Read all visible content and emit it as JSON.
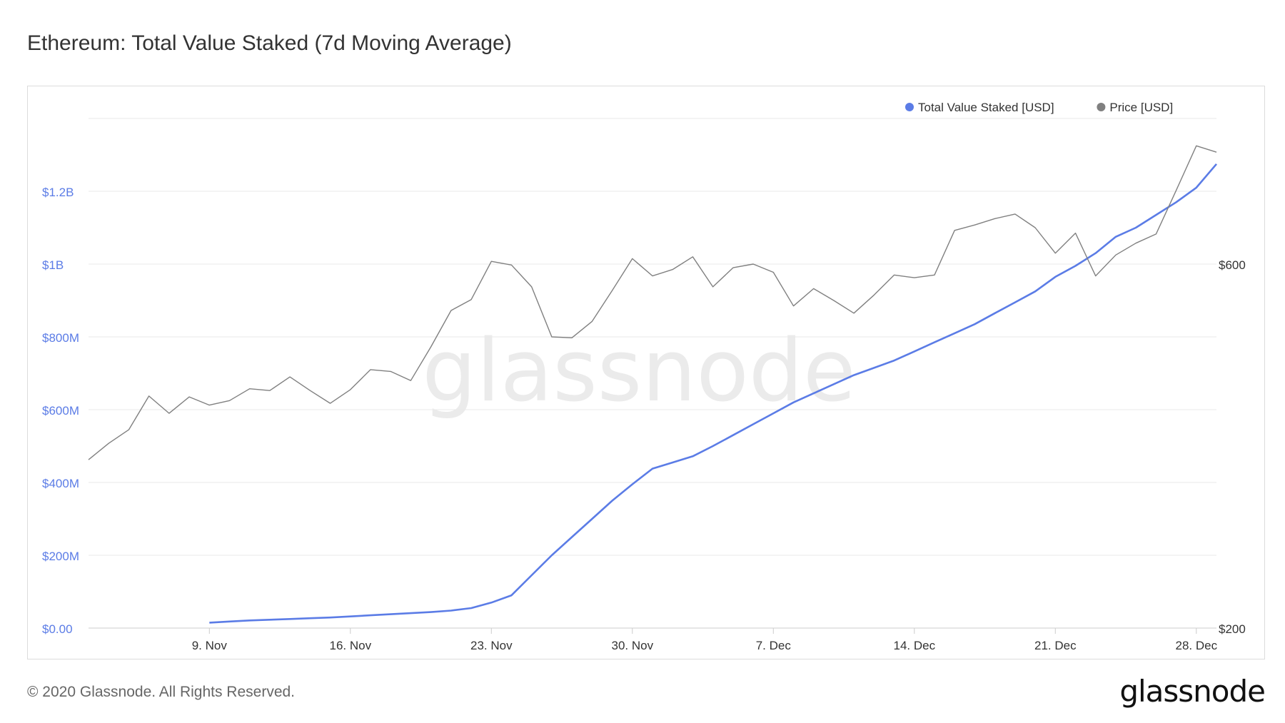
{
  "header": {
    "title": "Ethereum: Total Value Staked (7d Moving Average)"
  },
  "footer": {
    "copyright": "© 2020 Glassnode. All Rights Reserved.",
    "logo_text": "glassnode"
  },
  "watermark": "glassnode",
  "colors": {
    "staked": "#5b7ce6",
    "price": "#808080",
    "axis_left": "#5b7ce6",
    "axis_right": "#333333",
    "grid": "#e8e8e8"
  },
  "chart_data": {
    "type": "line",
    "title": "Ethereum: Total Value Staked (7d Moving Average)",
    "legend": [
      "Total Value Staked [USD]",
      "Price [USD]"
    ],
    "legend_position": "top-right",
    "grid": true,
    "x_range": [
      "2020-11-03",
      "2020-12-29"
    ],
    "x_ticks": [
      {
        "date": "2020-11-09",
        "label": "9. Nov"
      },
      {
        "date": "2020-11-16",
        "label": "16. Nov"
      },
      {
        "date": "2020-11-23",
        "label": "23. Nov"
      },
      {
        "date": "2020-11-30",
        "label": "30. Nov"
      },
      {
        "date": "2020-12-07",
        "label": "7. Dec"
      },
      {
        "date": "2020-12-14",
        "label": "14. Dec"
      },
      {
        "date": "2020-12-21",
        "label": "21. Dec"
      },
      {
        "date": "2020-12-28",
        "label": "28. Dec"
      }
    ],
    "y_left": {
      "ylim": [
        0,
        1400000000
      ],
      "ticks": [
        {
          "value": 0,
          "label": "$0.00"
        },
        {
          "value": 200000000,
          "label": "$200M"
        },
        {
          "value": 400000000,
          "label": "$400M"
        },
        {
          "value": 600000000,
          "label": "$600M"
        },
        {
          "value": 800000000,
          "label": "$800M"
        },
        {
          "value": 1000000000,
          "label": "$1B"
        },
        {
          "value": 1200000000,
          "label": "$1.2B"
        }
      ]
    },
    "y_right": {
      "ylim": [
        200,
        760
      ],
      "ticks": [
        {
          "value": 200,
          "label": "$200"
        },
        {
          "value": 600,
          "label": "$600"
        }
      ]
    },
    "series": [
      {
        "name": "Total Value Staked [USD]",
        "axis": "left",
        "points": [
          [
            "2020-11-09",
            15000000
          ],
          [
            "2020-11-10",
            18000000
          ],
          [
            "2020-11-11",
            21000000
          ],
          [
            "2020-11-12",
            23000000
          ],
          [
            "2020-11-13",
            25000000
          ],
          [
            "2020-11-14",
            27000000
          ],
          [
            "2020-11-15",
            29000000
          ],
          [
            "2020-11-16",
            32000000
          ],
          [
            "2020-11-17",
            35000000
          ],
          [
            "2020-11-18",
            38000000
          ],
          [
            "2020-11-19",
            41000000
          ],
          [
            "2020-11-20",
            44000000
          ],
          [
            "2020-11-21",
            48000000
          ],
          [
            "2020-11-22",
            55000000
          ],
          [
            "2020-11-23",
            70000000
          ],
          [
            "2020-11-24",
            90000000
          ],
          [
            "2020-11-25",
            145000000
          ],
          [
            "2020-11-26",
            200000000
          ],
          [
            "2020-11-27",
            250000000
          ],
          [
            "2020-11-28",
            300000000
          ],
          [
            "2020-11-29",
            350000000
          ],
          [
            "2020-11-30",
            395000000
          ],
          [
            "2020-12-01",
            438000000
          ],
          [
            "2020-12-02",
            455000000
          ],
          [
            "2020-12-03",
            472000000
          ],
          [
            "2020-12-04",
            500000000
          ],
          [
            "2020-12-05",
            530000000
          ],
          [
            "2020-12-06",
            560000000
          ],
          [
            "2020-12-07",
            590000000
          ],
          [
            "2020-12-08",
            620000000
          ],
          [
            "2020-12-09",
            645000000
          ],
          [
            "2020-12-10",
            670000000
          ],
          [
            "2020-12-11",
            695000000
          ],
          [
            "2020-12-12",
            715000000
          ],
          [
            "2020-12-13",
            735000000
          ],
          [
            "2020-12-14",
            760000000
          ],
          [
            "2020-12-15",
            785000000
          ],
          [
            "2020-12-16",
            810000000
          ],
          [
            "2020-12-17",
            835000000
          ],
          [
            "2020-12-18",
            865000000
          ],
          [
            "2020-12-19",
            895000000
          ],
          [
            "2020-12-20",
            925000000
          ],
          [
            "2020-12-21",
            965000000
          ],
          [
            "2020-12-22",
            995000000
          ],
          [
            "2020-12-23",
            1030000000
          ],
          [
            "2020-12-24",
            1075000000
          ],
          [
            "2020-12-25",
            1100000000
          ],
          [
            "2020-12-26",
            1135000000
          ],
          [
            "2020-12-27",
            1170000000
          ],
          [
            "2020-12-28",
            1210000000
          ],
          [
            "2020-12-29",
            1275000000
          ]
        ]
      },
      {
        "name": "Price [USD]",
        "axis": "right",
        "points": [
          [
            "2020-11-03",
            385
          ],
          [
            "2020-11-04",
            403
          ],
          [
            "2020-11-05",
            418
          ],
          [
            "2020-11-06",
            455
          ],
          [
            "2020-11-07",
            436
          ],
          [
            "2020-11-08",
            454
          ],
          [
            "2020-11-09",
            445
          ],
          [
            "2020-11-10",
            450
          ],
          [
            "2020-11-11",
            463
          ],
          [
            "2020-11-12",
            461
          ],
          [
            "2020-11-13",
            476
          ],
          [
            "2020-11-14",
            461
          ],
          [
            "2020-11-15",
            447
          ],
          [
            "2020-11-16",
            462
          ],
          [
            "2020-11-17",
            484
          ],
          [
            "2020-11-18",
            482
          ],
          [
            "2020-11-19",
            472
          ],
          [
            "2020-11-20",
            509
          ],
          [
            "2020-11-21",
            549
          ],
          [
            "2020-11-22",
            561
          ],
          [
            "2020-11-23",
            603
          ],
          [
            "2020-11-24",
            599
          ],
          [
            "2020-11-25",
            575
          ],
          [
            "2020-11-26",
            520
          ],
          [
            "2020-11-27",
            519
          ],
          [
            "2020-11-28",
            537
          ],
          [
            "2020-11-29",
            571
          ],
          [
            "2020-11-30",
            606
          ],
          [
            "2020-12-01",
            587
          ],
          [
            "2020-12-02",
            594
          ],
          [
            "2020-12-03",
            608
          ],
          [
            "2020-12-04",
            575
          ],
          [
            "2020-12-05",
            596
          ],
          [
            "2020-12-06",
            600
          ],
          [
            "2020-12-07",
            591
          ],
          [
            "2020-12-08",
            554
          ],
          [
            "2020-12-09",
            573
          ],
          [
            "2020-12-10",
            560
          ],
          [
            "2020-12-11",
            546
          ],
          [
            "2020-12-12",
            566
          ],
          [
            "2020-12-13",
            588
          ],
          [
            "2020-12-14",
            585
          ],
          [
            "2020-12-15",
            588
          ],
          [
            "2020-12-16",
            637
          ],
          [
            "2020-12-17",
            643
          ],
          [
            "2020-12-18",
            650
          ],
          [
            "2020-12-19",
            655
          ],
          [
            "2020-12-20",
            640
          ],
          [
            "2020-12-21",
            612
          ],
          [
            "2020-12-22",
            634
          ],
          [
            "2020-12-23",
            587
          ],
          [
            "2020-12-24",
            610
          ],
          [
            "2020-12-25",
            623
          ],
          [
            "2020-12-26",
            633
          ],
          [
            "2020-12-27",
            681
          ],
          [
            "2020-12-28",
            730
          ],
          [
            "2020-12-29",
            723
          ]
        ]
      }
    ]
  }
}
